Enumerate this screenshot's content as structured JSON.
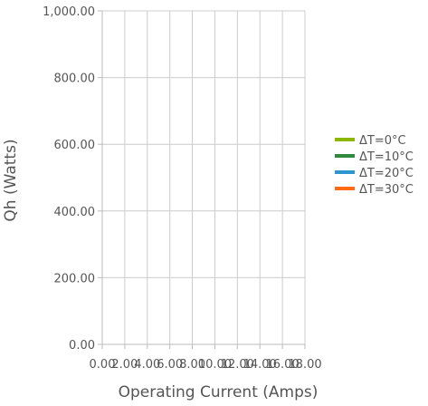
{
  "chart_data": {
    "type": "line",
    "title": "",
    "xlabel": "Operating Current (Amps)",
    "ylabel": "Qh (Watts)",
    "xlim": [
      0,
      18
    ],
    "ylim": [
      0,
      1000
    ],
    "x_ticks": [
      "0.00",
      "2.00",
      "4.00",
      "6.00",
      "8.00",
      "10.00",
      "12.00",
      "14.00",
      "16.00",
      "18.00"
    ],
    "y_ticks": [
      "0.00",
      "200.00",
      "400.00",
      "600.00",
      "800.00",
      "1,000.00"
    ],
    "grid": true,
    "legend_position": "right",
    "series": [
      {
        "name": "ΔT=0°C",
        "color": "#8db600",
        "values": []
      },
      {
        "name": "ΔT=10°C",
        "color": "#2e8b3e",
        "values": []
      },
      {
        "name": "ΔT=20°C",
        "color": "#2d96d2",
        "values": []
      },
      {
        "name": "ΔT=30°C",
        "color": "#ff6a13",
        "values": []
      }
    ]
  }
}
